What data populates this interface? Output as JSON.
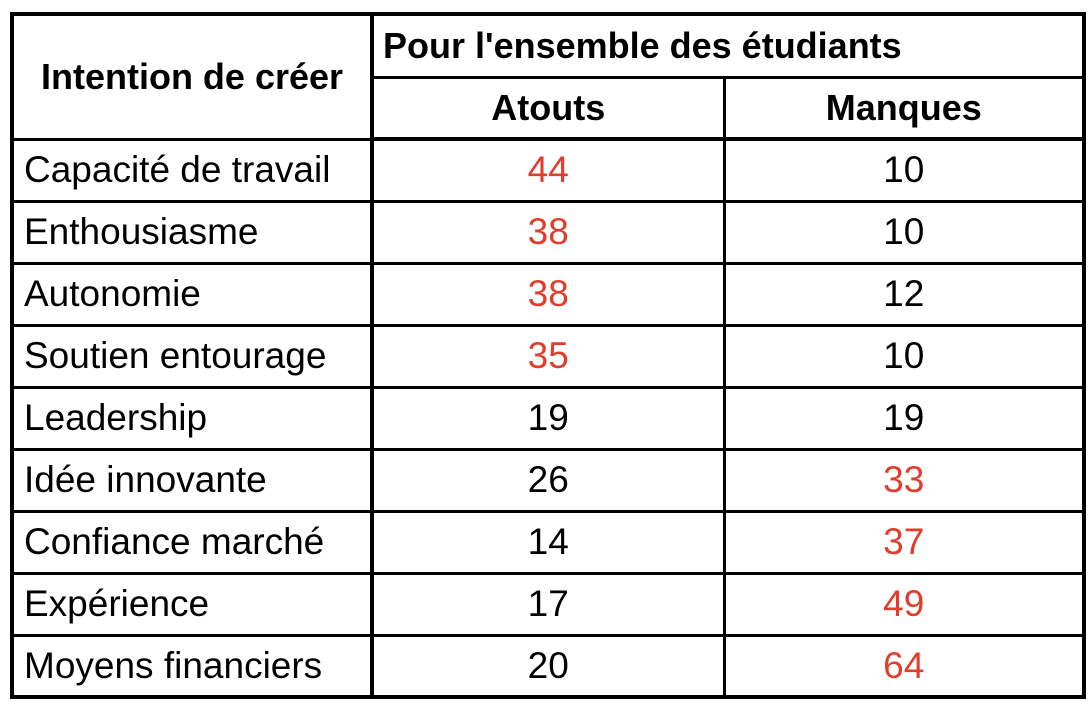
{
  "colors": {
    "background": "#ffffff",
    "border": "#000000",
    "text": "#000000",
    "highlight_red": "#E23C2B"
  },
  "table": {
    "corner_header": "Intention de créer",
    "group_header": "Pour l'ensemble des étudiants",
    "col_headers": [
      "Atouts",
      "Manques"
    ],
    "rows": [
      {
        "label": "Capacité de travail",
        "atouts": "44",
        "manques": "10",
        "atouts_color": "#E23C2B",
        "manques_color": "#000000"
      },
      {
        "label": "Enthousiasme",
        "atouts": "38",
        "manques": "10",
        "atouts_color": "#E23C2B",
        "manques_color": "#000000"
      },
      {
        "label": "Autonomie",
        "atouts": "38",
        "manques": "12",
        "atouts_color": "#E23C2B",
        "manques_color": "#000000"
      },
      {
        "label": "Soutien entourage",
        "atouts": "35",
        "manques": "10",
        "atouts_color": "#E23C2B",
        "manques_color": "#000000"
      },
      {
        "label": "Leadership",
        "atouts": "19",
        "manques": "19",
        "atouts_color": "#000000",
        "manques_color": "#000000"
      },
      {
        "label": "Idée innovante",
        "atouts": "26",
        "manques": "33",
        "atouts_color": "#000000",
        "manques_color": "#E23C2B"
      },
      {
        "label": "Confiance marché",
        "atouts": "14",
        "manques": "37",
        "atouts_color": "#000000",
        "manques_color": "#E23C2B"
      },
      {
        "label": "Expérience",
        "atouts": "17",
        "manques": "49",
        "atouts_color": "#000000",
        "manques_color": "#E23C2B"
      },
      {
        "label": "Moyens financiers",
        "atouts": "20",
        "manques": "64",
        "atouts_color": "#000000",
        "manques_color": "#E23C2B"
      }
    ]
  },
  "chart_data": {
    "type": "table",
    "title": "Pour l'ensemble des étudiants",
    "row_header_label": "Intention de créer",
    "categories": [
      "Capacité de travail",
      "Enthousiasme",
      "Autonomie",
      "Soutien entourage",
      "Leadership",
      "Idée innovante",
      "Confiance marché",
      "Expérience",
      "Moyens financiers"
    ],
    "series": [
      {
        "name": "Atouts",
        "values": [
          44,
          38,
          38,
          35,
          19,
          26,
          14,
          17,
          20
        ],
        "highlighted_values": [
          44,
          38,
          38,
          35
        ]
      },
      {
        "name": "Manques",
        "values": [
          10,
          10,
          12,
          10,
          19,
          33,
          37,
          49,
          64
        ],
        "highlighted_values": [
          33,
          37,
          49,
          64
        ]
      }
    ],
    "highlight_color": "#E23C2B",
    "legend_position": "none",
    "grid": "full-borders"
  }
}
